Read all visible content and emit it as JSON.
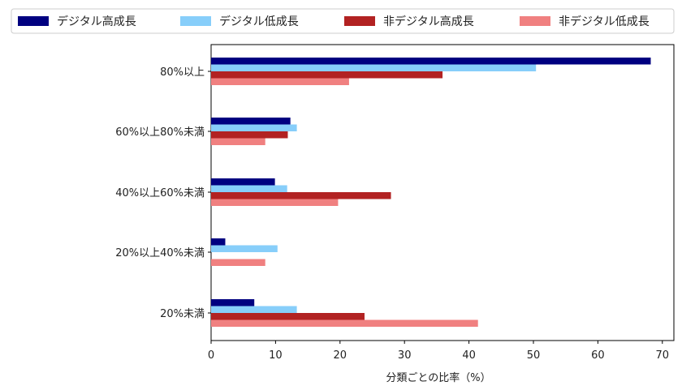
{
  "chart_data": {
    "type": "bar",
    "orientation": "horizontal",
    "categories": [
      "80%以上",
      "60%以上80%未満",
      "40%以上60%未満",
      "20%以上40%未満",
      "20%未満"
    ],
    "series": [
      {
        "name": "デジタル高成長",
        "color": "#000080",
        "values": [
          68.2,
          12.3,
          9.9,
          2.2,
          6.7
        ]
      },
      {
        "name": "デジタル低成長",
        "color": "#87cefa",
        "values": [
          50.4,
          13.3,
          11.8,
          10.3,
          13.3
        ]
      },
      {
        "name": "非デジタル高成長",
        "color": "#b22222",
        "values": [
          35.9,
          11.9,
          27.9,
          0,
          23.8
        ]
      },
      {
        "name": "非デジタル低成長",
        "color": "#f08080",
        "values": [
          21.4,
          8.4,
          19.7,
          8.4,
          41.4
        ]
      }
    ],
    "xlabel": "分類ごとの比率（%）",
    "ylabel": "",
    "xlim": [
      0,
      71.5
    ],
    "xticks": [
      0,
      10,
      20,
      30,
      40,
      50,
      60,
      70
    ],
    "grid": false,
    "legend_position": "top"
  }
}
